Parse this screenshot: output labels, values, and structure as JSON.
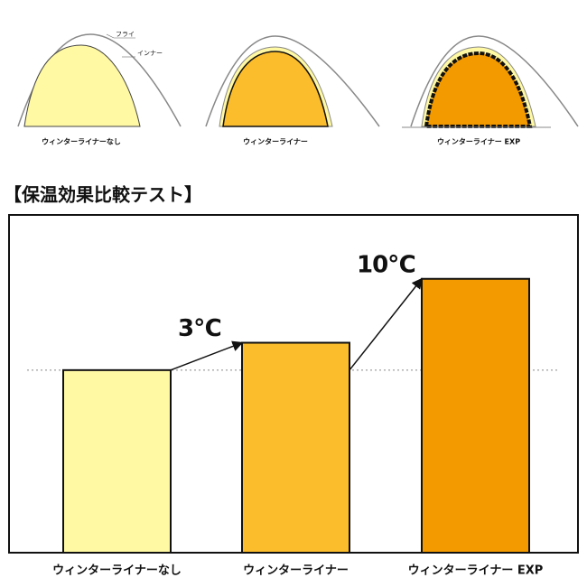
{
  "illustrations": {
    "fly_label": "フライ",
    "inner_label": "インナー"
  },
  "chart_data": {
    "type": "bar",
    "title": "【保温効果比較テスト】",
    "categories": [
      "ウィンターライナーなし",
      "ウィンターライナー",
      "ウィンターライナー EXP"
    ],
    "values": [
      20,
      23,
      30
    ],
    "colors": [
      "#fff9a3",
      "#fbbd2c",
      "#f39a00"
    ],
    "ylim": [
      0,
      37
    ],
    "annotations": [
      "3℃",
      "10℃"
    ],
    "reference_line": true
  }
}
